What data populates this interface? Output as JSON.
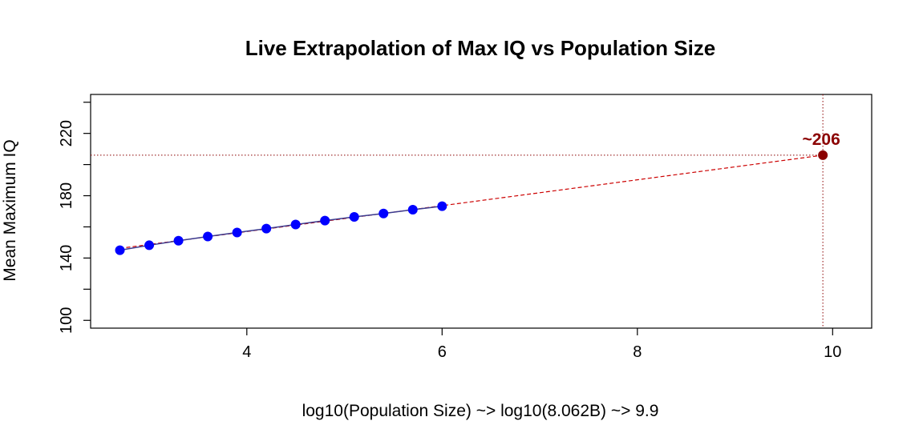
{
  "chart_data": {
    "type": "scatter",
    "title": "Live Extrapolation of Max IQ vs Population Size",
    "xlabel": "log10(Population Size) ~> log10(8.062B) ~> 9.9",
    "ylabel": "Mean Maximum IQ",
    "xlim": [
      2.4,
      10.4
    ],
    "ylim": [
      95,
      245
    ],
    "x_ticks": [
      4,
      6,
      8,
      10
    ],
    "y_ticks": [
      100,
      140,
      180,
      220
    ],
    "grid": false,
    "series": [
      {
        "points": [
          {
            "x": 2.7,
            "y": 145.0
          },
          {
            "x": 3.0,
            "y": 148.2
          },
          {
            "x": 3.3,
            "y": 151.1
          },
          {
            "x": 3.6,
            "y": 153.8
          },
          {
            "x": 3.9,
            "y": 156.4
          },
          {
            "x": 4.2,
            "y": 158.9
          },
          {
            "x": 4.5,
            "y": 161.5
          },
          {
            "x": 4.8,
            "y": 164.0
          },
          {
            "x": 5.1,
            "y": 166.4
          },
          {
            "x": 5.4,
            "y": 168.6
          },
          {
            "x": 5.7,
            "y": 171.0
          },
          {
            "x": 6.0,
            "y": 173.3
          }
        ],
        "color": "#0000ff",
        "connector_color": "#3b3b8f"
      }
    ],
    "fit_line": {
      "x_start": 2.7,
      "x_end": 9.9,
      "y_start": 146.2,
      "y_end": 206.0,
      "color": "#cc0000",
      "style": "dashed"
    },
    "extrapolated_point": {
      "x": 9.9,
      "y": 206.0,
      "label": "~206",
      "color": "#8b0000"
    },
    "reference_lines": {
      "horizontal_y": 206.0,
      "vertical_x": 9.9,
      "color": "#8b0000",
      "style": "dotted"
    }
  }
}
